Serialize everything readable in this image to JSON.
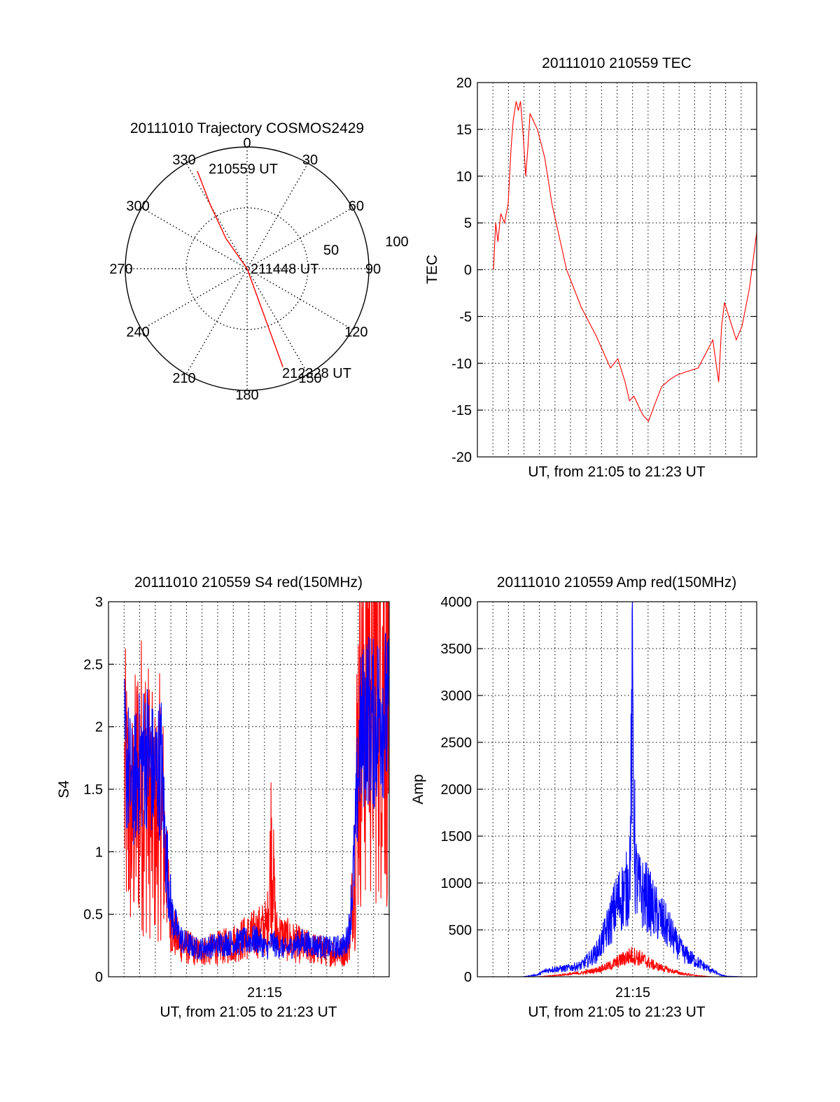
{
  "colors": {
    "red": "#ff0000",
    "blue": "#0000ff",
    "grid": "#000000",
    "axis": "#000000"
  },
  "chart_data": [
    {
      "type": "polar",
      "title": "20111010 Trajectory COSMOS2429",
      "angle_labels": [
        "0",
        "30",
        "60",
        "90",
        "120",
        "150",
        "180",
        "210",
        "240",
        "270",
        "300",
        "330"
      ],
      "radial_labels": [
        "50",
        "100"
      ],
      "radial_range": [
        0,
        100
      ],
      "series": [
        {
          "color": "red",
          "points": [
            {
              "az": 333,
              "zd": 90
            },
            {
              "az": 330,
              "zd": 60
            },
            {
              "az": 325,
              "zd": 30
            },
            {
              "az": 0,
              "zd": 0
            },
            {
              "az": 160,
              "zd": 25
            },
            {
              "az": 160,
              "zd": 55
            },
            {
              "az": 160,
              "zd": 86
            }
          ]
        }
      ],
      "annotations": [
        {
          "text": "210559 UT"
        },
        {
          "text": "211448 UT"
        },
        {
          "text": "212328 UT"
        }
      ]
    },
    {
      "type": "line",
      "title": "20111010 210559 TEC",
      "xlabel": "UT, from 21:05 to 21:23 UT",
      "ylabel": "TEC",
      "xlim": [
        0,
        18
      ],
      "ylim": [
        -20,
        20
      ],
      "yticks": [
        "20",
        "15",
        "10",
        "5",
        "0",
        "-5",
        "-10",
        "-15",
        "-20"
      ],
      "grid": true,
      "series": [
        {
          "color": "red",
          "x": [
            0,
            0.15,
            0.3,
            0.5,
            0.75,
            1.0,
            1.2,
            1.35,
            1.55,
            1.7,
            1.85,
            2.05,
            2.2,
            2.35,
            2.5,
            2.7,
            3,
            3.5,
            4,
            5,
            6,
            7,
            8,
            8.5,
            9,
            9.3,
            9.6,
            9.9,
            10.2,
            10.6,
            11,
            11.5,
            12,
            12.5,
            13,
            14,
            15,
            15.4,
            15.6,
            15.8,
            16.2,
            16.6,
            17,
            17.5,
            18
          ],
          "values": [
            0,
            5,
            3,
            6,
            5,
            7,
            13,
            16,
            18,
            17,
            18,
            14,
            10,
            13,
            16.7,
            16,
            15,
            12,
            7,
            0,
            -4,
            -7,
            -10.5,
            -9.5,
            -12,
            -14,
            -13.5,
            -14.5,
            -15.5,
            -16.2,
            -14.5,
            -12.5,
            -11.8,
            -11.3,
            -11,
            -10.5,
            -7.5,
            -12,
            -6,
            -3.5,
            -5.5,
            -7.5,
            -6,
            -2,
            4
          ]
        }
      ]
    },
    {
      "type": "line",
      "title": "20111010 210559 S4 red(150MHz)",
      "xlabel": "UT, from 21:05 to 21:23 UT",
      "ylabel": "S4",
      "xlim": [
        0,
        18
      ],
      "ylim": [
        0,
        3
      ],
      "yticks": [
        "3",
        "2.5",
        "2",
        "1.5",
        "1",
        "0.5",
        "0"
      ],
      "xticks": [
        {
          "value": 10,
          "label": "21:15"
        }
      ],
      "grid": true,
      "series": [
        {
          "color": "blue",
          "x": [
            0,
            0.5,
            1,
            1.5,
            2,
            2.5,
            2.8,
            3.2,
            3.6,
            4,
            5,
            6,
            7,
            8,
            9,
            9.7,
            10,
            10.3,
            11,
            12,
            13,
            14,
            15,
            15.3,
            15.6,
            16,
            16.5,
            17,
            17.5,
            18
          ],
          "values": [
            1.8,
            1.5,
            1.7,
            1.8,
            1.6,
            1.7,
            1.0,
            0.5,
            0.35,
            0.28,
            0.22,
            0.25,
            0.27,
            0.28,
            0.3,
            0.22,
            0.28,
            0.25,
            0.22,
            0.28,
            0.25,
            0.23,
            0.25,
            0.4,
            0.9,
            1.9,
            2.1,
            2.0,
            2.2,
            2.0
          ]
        },
        {
          "color": "red",
          "x": [
            0,
            0.5,
            1,
            1.5,
            2,
            2.5,
            2.8,
            3.2,
            3.6,
            4,
            5,
            6,
            7,
            8,
            9,
            9.7,
            10,
            10.3,
            11,
            12,
            13,
            14,
            15,
            15.3,
            15.6,
            16,
            16.5,
            17,
            17.5,
            18
          ],
          "values": [
            1.5,
            1.2,
            1.6,
            1.5,
            1.2,
            1.4,
            0.9,
            0.4,
            0.3,
            0.25,
            0.2,
            0.22,
            0.25,
            0.3,
            0.35,
            0.4,
            1.1,
            0.35,
            0.3,
            0.25,
            0.22,
            0.2,
            0.2,
            0.3,
            0.8,
            2.3,
            2.6,
            2.5,
            2.7,
            2.4
          ]
        }
      ]
    },
    {
      "type": "line",
      "title": "20111010 210559 Amp red(150MHz)",
      "xlabel": "UT, from 21:05 to 21:23 UT",
      "ylabel": "Amp",
      "xlim": [
        0,
        18
      ],
      "ylim": [
        0,
        4000
      ],
      "yticks": [
        "4000",
        "3500",
        "3000",
        "2500",
        "2000",
        "1500",
        "1000",
        "500",
        "0"
      ],
      "xticks": [
        {
          "value": 10,
          "label": "21:15"
        }
      ],
      "grid": true,
      "series": [
        {
          "color": "blue",
          "x": [
            0,
            2,
            3,
            3.5,
            4,
            5,
            6,
            7,
            7.5,
            8,
            8.5,
            9,
            9.3,
            9.5,
            9.7,
            10,
            10.5,
            11,
            11.5,
            12,
            12.5,
            13,
            14,
            15,
            15.5,
            16,
            17,
            18
          ],
          "values": [
            0,
            0,
            20,
            60,
            80,
            90,
            120,
            250,
            400,
            600,
            800,
            900,
            1000,
            2950,
            1100,
            900,
            850,
            700,
            600,
            500,
            350,
            250,
            150,
            60,
            20,
            5,
            0,
            0
          ]
        },
        {
          "color": "red",
          "x": [
            0,
            3,
            4,
            5,
            6,
            7,
            8,
            8.5,
            9,
            9.5,
            10,
            10.5,
            11,
            12,
            13,
            14,
            15,
            18
          ],
          "values": [
            0,
            0,
            10,
            25,
            40,
            70,
            120,
            160,
            200,
            230,
            200,
            160,
            120,
            70,
            30,
            10,
            0,
            0
          ]
        }
      ]
    }
  ]
}
